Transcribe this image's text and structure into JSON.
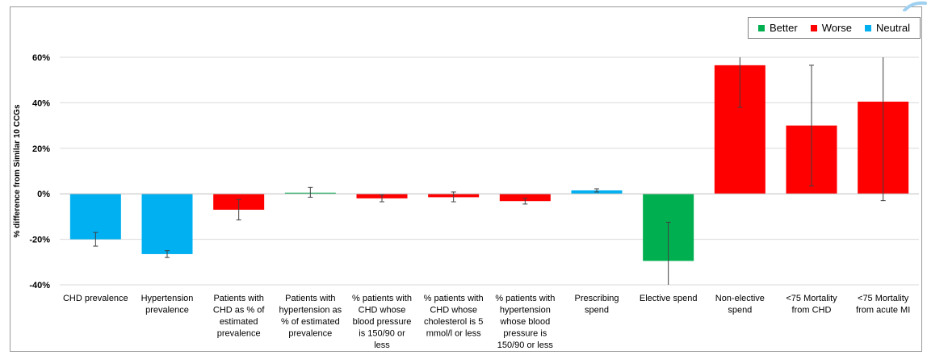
{
  "legend": {
    "better": {
      "label": "Better",
      "color": "#00b050"
    },
    "worse": {
      "label": "Worse",
      "color": "#ff0000"
    },
    "neutral": {
      "label": "Neutral",
      "color": "#00b0f0"
    }
  },
  "chart_data": {
    "type": "bar",
    "title": "",
    "xlabel": "",
    "ylabel": "% difference from Similar 10 CCGs",
    "ylim": [
      -40,
      60
    ],
    "yticks": [
      {
        "value": -40,
        "label": "-40%"
      },
      {
        "value": -20,
        "label": "-20%"
      },
      {
        "value": 0,
        "label": "0%"
      },
      {
        "value": 20,
        "label": "20%"
      },
      {
        "value": 40,
        "label": "40%"
      },
      {
        "value": 60,
        "label": "60%"
      }
    ],
    "grid": true,
    "legend_position": "top-right",
    "categories": [
      [
        "CHD prevalence"
      ],
      [
        "Hypertension",
        "prevalence"
      ],
      [
        "Patients with",
        "CHD as % of",
        "estimated",
        "prevalence"
      ],
      [
        "Patients with",
        "hypertension as",
        "% of estimated",
        "prevalence"
      ],
      [
        "% patients with",
        "CHD whose",
        "blood pressure",
        "is 150/90 or",
        "less"
      ],
      [
        "% patients with",
        "CHD whose",
        "cholesterol is 5",
        "mmol/l or less"
      ],
      [
        "% patients with",
        "hypertension",
        "whose blood",
        "pressure is",
        "150/90 or less"
      ],
      [
        "Prescribing",
        "spend"
      ],
      [
        "Elective spend"
      ],
      [
        "Non-elective",
        "spend"
      ],
      [
        "<75 Mortality",
        "from CHD"
      ],
      [
        "<75 Mortality",
        "from acute MI"
      ]
    ],
    "values": [
      -20,
      -26.5,
      -7,
      0.5,
      -2,
      -1.5,
      -3.2,
      1.5,
      -29.5,
      56.5,
      30,
      40.5
    ],
    "error_low": [
      -23,
      -28,
      -11.5,
      -1.5,
      -3.5,
      -3.5,
      -4.5,
      0.8,
      -40,
      38,
      3.5,
      -3
    ],
    "error_high": [
      -17,
      -25,
      -2.5,
      2.8,
      -0.5,
      0.8,
      -2,
      2.2,
      -12.5,
      60,
      56.5,
      60
    ],
    "status": [
      "neutral",
      "neutral",
      "worse",
      "better",
      "worse",
      "worse",
      "worse",
      "neutral",
      "better",
      "worse",
      "worse",
      "worse"
    ]
  }
}
